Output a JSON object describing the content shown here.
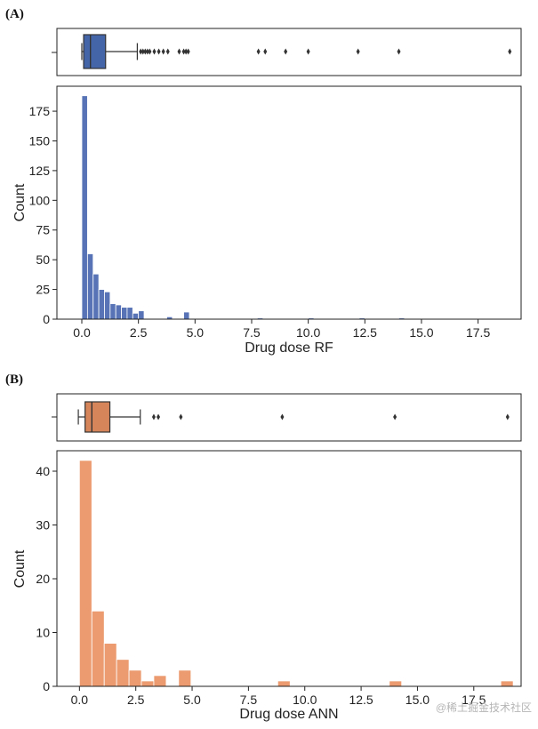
{
  "watermark": "@稀土掘金技术社区",
  "colors": {
    "rf": "#5874b6",
    "rf_box": "#4465a8",
    "ann": "#eb9b6f",
    "ann_box": "#d6855a",
    "axis": "#222222"
  },
  "chart_data": [
    {
      "type": "bar",
      "panel_label": "(A)",
      "title": "",
      "xlabel": "Drug dose RF",
      "ylabel": "Count",
      "xlim": [
        -1.1,
        19.4
      ],
      "ylim": [
        0,
        196
      ],
      "xticks": [
        0,
        2.5,
        5,
        7.5,
        10,
        12.5,
        15,
        17.5
      ],
      "xtick_labels": [
        "0.0",
        "2.5",
        "5.0",
        "7.5",
        "10.0",
        "12.5",
        "15.0",
        "17.5"
      ],
      "yticks": [
        0,
        25,
        50,
        75,
        100,
        125,
        150,
        175
      ],
      "ytick_labels": [
        "0",
        "25",
        "50",
        "75",
        "100",
        "125",
        "150",
        "175"
      ],
      "bin_start": 0.0,
      "bin_width": 0.25,
      "values": [
        188,
        55,
        38,
        25,
        23,
        13,
        12,
        10,
        10,
        5,
        7,
        0,
        0,
        0,
        0,
        2,
        0,
        0,
        6,
        0,
        0,
        0,
        0,
        0,
        0,
        0,
        0,
        0,
        0,
        0,
        0,
        1,
        0,
        0,
        0,
        0,
        0,
        0,
        0,
        0,
        1,
        0,
        0,
        0,
        0,
        0,
        0,
        0,
        0,
        1,
        0,
        0,
        0,
        0,
        0,
        0,
        1
      ],
      "boxplot": {
        "whisker_low": 0.0,
        "q1": 0.08,
        "median": 0.38,
        "q3": 1.05,
        "whisker_high": 2.45,
        "outliers": [
          2.6,
          2.7,
          2.8,
          2.9,
          3.0,
          3.2,
          3.4,
          3.6,
          3.8,
          4.3,
          4.5,
          4.6,
          4.7,
          7.8,
          8.1,
          9.0,
          10.0,
          12.2,
          14.0,
          18.9
        ]
      }
    },
    {
      "type": "bar",
      "panel_label": "(B)",
      "title": "",
      "xlabel": "Drug dose ANN",
      "ylabel": "Count",
      "xlim": [
        -1.0,
        19.6
      ],
      "ylim": [
        0,
        43.8
      ],
      "xticks": [
        0,
        2.5,
        5,
        7.5,
        10,
        12.5,
        15,
        17.5
      ],
      "xtick_labels": [
        "0.0",
        "2.5",
        "5.0",
        "7.5",
        "10.0",
        "12.5",
        "15.0",
        "17.5"
      ],
      "yticks": [
        0,
        10,
        20,
        30,
        40
      ],
      "ytick_labels": [
        "0",
        "10",
        "20",
        "30",
        "40"
      ],
      "bin_start": 0.0,
      "bin_width": 0.55,
      "values": [
        42,
        14,
        8,
        5,
        3,
        1,
        2,
        0,
        3,
        0,
        0,
        0,
        0,
        0,
        0,
        0,
        1,
        0,
        0,
        0,
        0,
        0,
        0,
        0,
        0,
        1,
        0,
        0,
        0,
        0,
        0,
        0,
        0,
        0,
        1
      ],
      "boxplot": {
        "whisker_low": -0.05,
        "q1": 0.25,
        "median": 0.55,
        "q3": 1.35,
        "whisker_high": 2.7,
        "outliers": [
          3.3,
          3.5,
          4.5,
          9.0,
          14.0,
          19.0
        ]
      }
    }
  ]
}
